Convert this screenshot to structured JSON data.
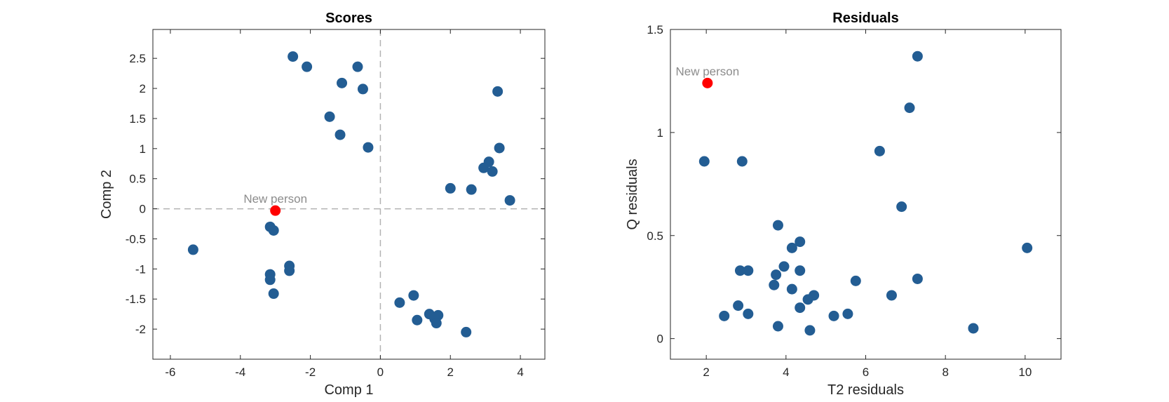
{
  "colors": {
    "points": "#235d93",
    "highlight": "#ff0000",
    "zero_line": "#b3b3b3",
    "annotation": "#8c8c8c",
    "axes": "#262626"
  },
  "chart_data": [
    {
      "type": "scatter",
      "title": "Scores",
      "xlabel": "Comp 1",
      "ylabel": "Comp 2",
      "xlim": [
        -6.5,
        4.7
      ],
      "ylim": [
        -2.5,
        2.98
      ],
      "xticks": [
        -6,
        -4,
        -2,
        0,
        2,
        4
      ],
      "yticks": [
        -2,
        -1.5,
        -1,
        -0.5,
        0,
        0.5,
        1,
        1.5,
        2,
        2.5
      ],
      "xtick_labels": [
        "-6",
        "-4",
        "-2",
        "0",
        "2",
        "4"
      ],
      "ytick_labels": [
        "-2",
        "-1.5",
        "-1",
        "-0.5",
        "0",
        "0.5",
        "1",
        "1.5",
        "2",
        "2.5"
      ],
      "zero_lines": true,
      "grid": false,
      "points": [
        [
          -2.5,
          2.53
        ],
        [
          -2.1,
          2.36
        ],
        [
          -0.65,
          2.36
        ],
        [
          -1.1,
          2.09
        ],
        [
          -0.5,
          1.99
        ],
        [
          -1.45,
          1.53
        ],
        [
          -1.15,
          1.23
        ],
        [
          -0.35,
          1.02
        ],
        [
          3.35,
          1.95
        ],
        [
          3.4,
          1.01
        ],
        [
          3.1,
          0.78
        ],
        [
          2.95,
          0.68
        ],
        [
          3.2,
          0.62
        ],
        [
          2.0,
          0.34
        ],
        [
          2.6,
          0.32
        ],
        [
          3.7,
          0.14
        ],
        [
          -5.35,
          -0.68
        ],
        [
          -3.15,
          -0.3
        ],
        [
          -3.05,
          -0.36
        ],
        [
          -2.6,
          -0.95
        ],
        [
          -2.6,
          -1.03
        ],
        [
          -3.15,
          -1.09
        ],
        [
          -3.15,
          -1.18
        ],
        [
          -3.05,
          -1.41
        ],
        [
          0.55,
          -1.56
        ],
        [
          0.95,
          -1.44
        ],
        [
          1.05,
          -1.85
        ],
        [
          1.4,
          -1.75
        ],
        [
          1.65,
          -1.77
        ],
        [
          1.55,
          -1.83
        ],
        [
          1.6,
          -1.9
        ],
        [
          2.45,
          -2.05
        ]
      ],
      "highlight": {
        "label": "New person",
        "x": -3.0,
        "y": -0.03
      }
    },
    {
      "type": "scatter",
      "title": "Residuals",
      "xlabel": "T2 residuals",
      "ylabel": "Q residuals",
      "xlim": [
        1.1,
        10.9
      ],
      "ylim": [
        -0.1,
        1.5
      ],
      "xticks": [
        2,
        4,
        6,
        8,
        10
      ],
      "yticks": [
        0,
        0.5,
        1,
        1.5
      ],
      "xtick_labels": [
        "2",
        "4",
        "6",
        "8",
        "10"
      ],
      "ytick_labels": [
        "0",
        "0.5",
        "1",
        "1.5"
      ],
      "zero_lines": false,
      "grid": false,
      "points": [
        [
          7.3,
          1.37
        ],
        [
          7.1,
          1.12
        ],
        [
          1.95,
          0.86
        ],
        [
          2.9,
          0.86
        ],
        [
          6.35,
          0.91
        ],
        [
          6.9,
          0.64
        ],
        [
          3.8,
          0.55
        ],
        [
          4.35,
          0.47
        ],
        [
          4.15,
          0.44
        ],
        [
          10.05,
          0.44
        ],
        [
          3.95,
          0.35
        ],
        [
          2.85,
          0.33
        ],
        [
          3.05,
          0.33
        ],
        [
          4.35,
          0.33
        ],
        [
          3.75,
          0.31
        ],
        [
          7.3,
          0.29
        ],
        [
          5.75,
          0.28
        ],
        [
          3.7,
          0.26
        ],
        [
          4.15,
          0.24
        ],
        [
          4.7,
          0.21
        ],
        [
          4.55,
          0.19
        ],
        [
          6.65,
          0.21
        ],
        [
          2.8,
          0.16
        ],
        [
          4.35,
          0.15
        ],
        [
          2.45,
          0.11
        ],
        [
          3.05,
          0.12
        ],
        [
          5.2,
          0.11
        ],
        [
          5.55,
          0.12
        ],
        [
          3.8,
          0.06
        ],
        [
          4.6,
          0.04
        ],
        [
          8.7,
          0.05
        ]
      ],
      "highlight": {
        "label": "New person",
        "x": 2.03,
        "y": 1.24
      }
    }
  ]
}
